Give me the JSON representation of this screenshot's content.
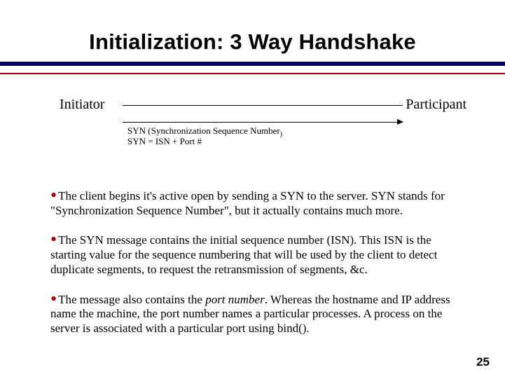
{
  "title": "Initialization: 3 Way Handshake",
  "diagram": {
    "left_role": "Initiator",
    "right_role": "Participant",
    "msg_label_main": "SYN (Synchronization Sequence Number",
    "msg_label_sub": ")",
    "msg_formula": "SYN = ISN + Port #"
  },
  "bullets": {
    "b1": "The client begins it's active open by sending a SYN to the server. SYN stands for \"Synchronization Sequence Number\", but it actually contains much more.",
    "b2": "The SYN message contains the initial sequence number (ISN). This ISN is the starting value for the sequence numbering that will be used by the client to detect duplicate segments, to request the retransmission of segments, &c.",
    "b3_pre": "The message also contains the ",
    "b3_em": "port number",
    "b3_post": ". Whereas the hostname and IP address name the machine, the port number names a particular processes. A process on the server is associated with a particular port using bind()."
  },
  "page_number": "25",
  "colors": {
    "navy": "#000060",
    "red": "#b00000",
    "text": "#000000",
    "bg": "#ffffff"
  }
}
